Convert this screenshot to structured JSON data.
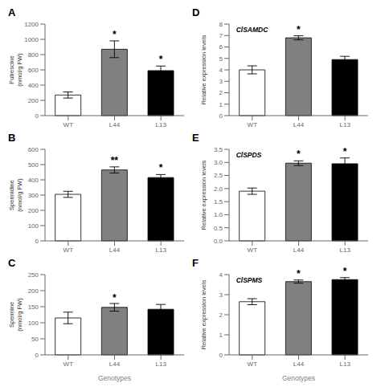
{
  "chart_data": [
    {
      "type": "bar",
      "title": "A",
      "ylabel": "Putrescine\n(nmol/g FW)",
      "categories": [
        "WT",
        "L44",
        "L13"
      ],
      "values": [
        270,
        870,
        590
      ],
      "errors": [
        40,
        110,
        60
      ],
      "colors": [
        "white",
        "#808080",
        "black"
      ],
      "ylim": [
        0,
        1200
      ],
      "yticks": [
        0,
        200,
        400,
        600,
        800,
        1000,
        1200
      ],
      "annotations": [
        {
          "category": "L44",
          "text": "*"
        },
        {
          "category": "L13",
          "text": "*"
        }
      ]
    },
    {
      "type": "bar",
      "title": "B",
      "ylabel": "Spermidine\n(nmol/g FW)",
      "categories": [
        "WT",
        "L44",
        "L13"
      ],
      "values": [
        305,
        465,
        415
      ],
      "errors": [
        20,
        20,
        20
      ],
      "colors": [
        "white",
        "#808080",
        "black"
      ],
      "ylim": [
        0,
        600
      ],
      "yticks": [
        0,
        100,
        200,
        300,
        400,
        500,
        600
      ],
      "annotations": [
        {
          "category": "L44",
          "text": "**"
        },
        {
          "category": "L13",
          "text": "*"
        }
      ]
    },
    {
      "type": "bar",
      "title": "C",
      "ylabel": "Spermine\n(nmol/g FW)",
      "xlabel": "Genotypes",
      "categories": [
        "WT",
        "L44",
        "L13"
      ],
      "values": [
        115,
        148,
        142
      ],
      "errors": [
        18,
        12,
        15
      ],
      "colors": [
        "white",
        "#808080",
        "black"
      ],
      "ylim": [
        0,
        250
      ],
      "yticks": [
        0,
        50,
        100,
        150,
        200,
        250
      ],
      "annotations": [
        {
          "category": "L44",
          "text": "*"
        }
      ]
    },
    {
      "type": "bar",
      "title": "D",
      "subtitle": "ClSAMDC",
      "ylabel": "Relative expression levels",
      "categories": [
        "WT",
        "L44",
        "L13"
      ],
      "values": [
        4.0,
        6.8,
        4.9
      ],
      "errors": [
        0.35,
        0.18,
        0.28
      ],
      "colors": [
        "white",
        "#808080",
        "black"
      ],
      "ylim": [
        0,
        8
      ],
      "yticks": [
        0,
        1,
        2,
        3,
        4,
        5,
        6,
        7,
        8
      ],
      "annotations": [
        {
          "category": "L44",
          "text": "*"
        }
      ]
    },
    {
      "type": "bar",
      "title": "E",
      "subtitle": "ClSPDS",
      "ylabel": "Relative expression levels",
      "categories": [
        "WT",
        "L44",
        "L13"
      ],
      "values": [
        1.9,
        2.97,
        2.95
      ],
      "errors": [
        0.12,
        0.09,
        0.22
      ],
      "colors": [
        "white",
        "#808080",
        "black"
      ],
      "ylim": [
        0,
        3.5
      ],
      "yticks": [
        {
          "value": 0,
          "label": "0.0"
        },
        0.5,
        {
          "value": 1.0,
          "label": "1.0"
        },
        1.5,
        {
          "value": 2.0,
          "label": "2.0"
        },
        2.5,
        {
          "value": 3.0,
          "label": "3.0"
        },
        3.5
      ],
      "annotations": [
        {
          "category": "L44",
          "text": "*"
        },
        {
          "category": "L13",
          "text": "*"
        }
      ]
    },
    {
      "type": "bar",
      "title": "F",
      "subtitle": "ClSPMS",
      "ylabel": "Relative expression levels",
      "xlabel": "Genotypes",
      "categories": [
        "WT",
        "L44",
        "L13"
      ],
      "values": [
        2.65,
        3.65,
        3.75
      ],
      "errors": [
        0.15,
        0.08,
        0.1
      ],
      "colors": [
        "white",
        "#808080",
        "black"
      ],
      "ylim": [
        0,
        4.0
      ],
      "yticks": [
        0,
        1.0,
        2.0,
        3.0,
        4.0
      ],
      "annotations": [
        {
          "category": "L44",
          "text": "*"
        },
        {
          "category": "L13",
          "text": "*"
        }
      ]
    }
  ]
}
